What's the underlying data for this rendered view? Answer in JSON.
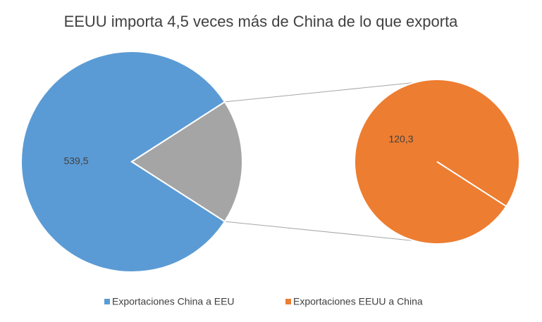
{
  "chart_data": {
    "type": "pie",
    "title": "EEUU importa 4,5 veces más de China de lo que exporta",
    "categories": [
      "Exportaciones China a EEU",
      "Exportaciones EEUU a China"
    ],
    "values": [
      539.5,
      120.3
    ],
    "value_labels": [
      "539,5",
      "120,3"
    ],
    "colors": [
      "#5b9bd5",
      "#ed7d31"
    ],
    "other_color": "#a5a5a5",
    "legend": "bottom"
  }
}
